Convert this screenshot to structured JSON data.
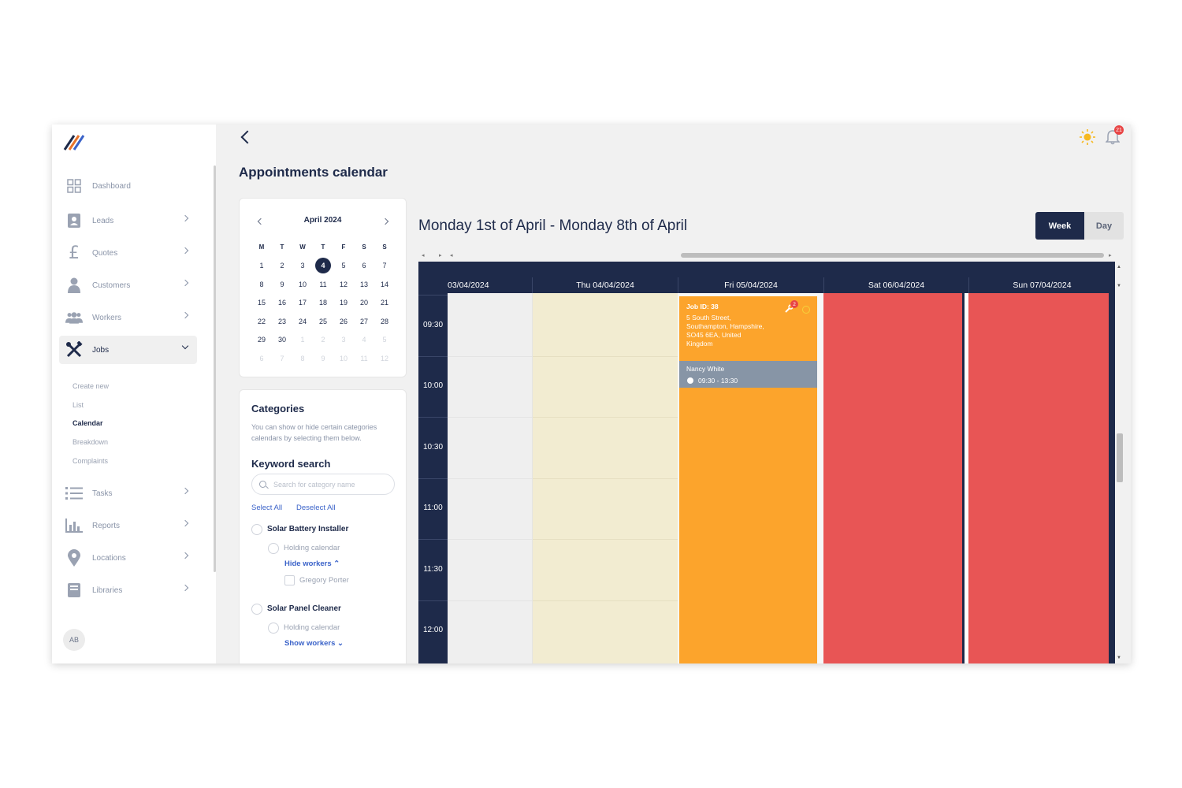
{
  "sidebar": {
    "items": [
      {
        "label": "Dashboard",
        "icon": "dashboard-grid-icon"
      },
      {
        "label": "Leads",
        "icon": "contact-book-icon"
      },
      {
        "label": "Quotes",
        "icon": "pound-icon"
      },
      {
        "label": "Customers",
        "icon": "person-icon"
      },
      {
        "label": "Workers",
        "icon": "group-icon"
      },
      {
        "label": "Jobs",
        "icon": "tools-icon"
      },
      {
        "label": "Tasks",
        "icon": "list-icon"
      },
      {
        "label": "Reports",
        "icon": "bar-chart-icon"
      },
      {
        "label": "Locations",
        "icon": "map-pin-icon"
      },
      {
        "label": "Libraries",
        "icon": "book-icon"
      }
    ],
    "jobs_sub": [
      "Create new",
      "List",
      "Calendar",
      "Breakdown",
      "Complaints"
    ],
    "active_sub": "Calendar",
    "avatar": "AB"
  },
  "header": {
    "title": "Appointments calendar",
    "notification_count": "21"
  },
  "mini_calendar": {
    "month_label": "April 2024",
    "weekdays": [
      "M",
      "T",
      "W",
      "T",
      "F",
      "S",
      "S"
    ],
    "weeks": [
      [
        "1",
        "2",
        "3",
        "4",
        "5",
        "6",
        "7"
      ],
      [
        "8",
        "9",
        "10",
        "11",
        "12",
        "13",
        "14"
      ],
      [
        "15",
        "16",
        "17",
        "18",
        "19",
        "20",
        "21"
      ],
      [
        "22",
        "23",
        "24",
        "25",
        "26",
        "27",
        "28"
      ],
      [
        "29",
        "30",
        "1",
        "2",
        "3",
        "4",
        "5"
      ],
      [
        "6",
        "7",
        "8",
        "9",
        "10",
        "11",
        "12"
      ]
    ],
    "selected": "4"
  },
  "categories": {
    "title": "Categories",
    "description": "You can show or hide certain categories calendars by selecting them below.",
    "keyword_title": "Keyword search",
    "search_placeholder": "Search for category name",
    "select_all": "Select All",
    "deselect_all": "Deselect All",
    "groups": [
      {
        "name": "Solar Battery Installer",
        "holding": "Holding calendar",
        "toggle": "Hide workers ⌃",
        "workers": [
          "Gregory Porter"
        ]
      },
      {
        "name": "Solar Panel Cleaner",
        "holding": "Holding calendar",
        "toggle": "Show workers ⌄"
      }
    ]
  },
  "calendar": {
    "range_title": "Monday 1st of April - Monday 8th of April",
    "views": {
      "week": "Week",
      "day": "Day"
    },
    "active_view": "Week",
    "columns": [
      "03/04/2024",
      "Thu 04/04/2024",
      "Fri 05/04/2024",
      "Sat 06/04/2024",
      "Sun 07/04/2024"
    ],
    "times": [
      "09:30",
      "10:00",
      "10:30",
      "11:00",
      "11:30",
      "12:00"
    ],
    "event": {
      "job_id": "Job ID: 38",
      "address": "5 South Street, Southampton, Hampshire, SO45 6EA, United Kingdom",
      "worker": "Nancy White",
      "time": "09:30 - 13:30",
      "badge": "2",
      "color": "#fca42c"
    },
    "colors": {
      "today": "#f2ecd1",
      "unavailable": "#e85555",
      "header": "#1e2a4a"
    }
  }
}
